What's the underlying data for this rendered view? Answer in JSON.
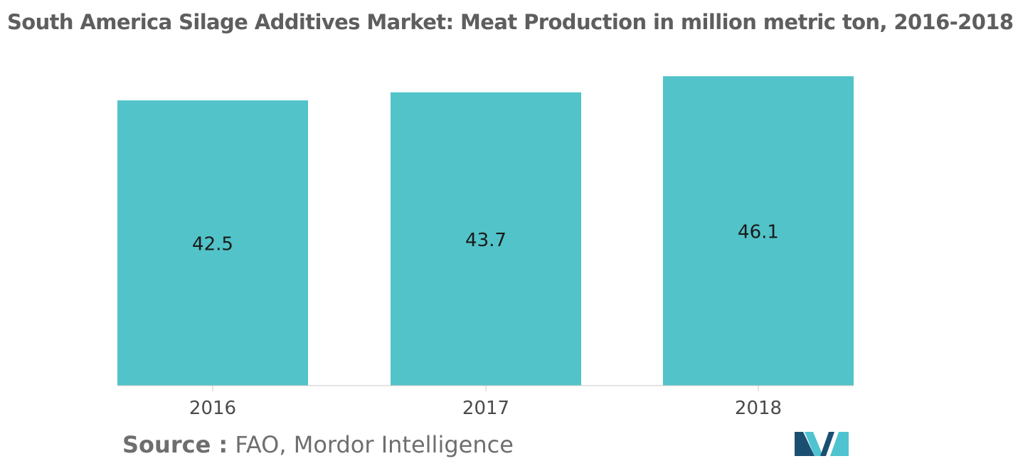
{
  "title": "South America Silage Additives Market: Meat Production in million metric ton, 2016-2018",
  "source": {
    "label": "Source :",
    "text": "FAO, Mordor Intelligence"
  },
  "colors": {
    "bar": "#51c3c9",
    "title": "#5e5e5e",
    "axis": "#c8c8c8",
    "logo_dark": "#1b4f72",
    "logo_light": "#4fc3d0"
  },
  "chart_data": {
    "type": "bar",
    "categories": [
      "2016",
      "2017",
      "2018"
    ],
    "values": [
      42.5,
      43.7,
      46.1
    ],
    "title": "South America Silage Additives Market: Meat Production in million metric ton, 2016-2018",
    "xlabel": "",
    "ylabel": "",
    "ylim": [
      0,
      50.25
    ],
    "grid": false,
    "legend": "none",
    "data_labels": [
      "42.5",
      "43.7",
      "46.1"
    ]
  }
}
